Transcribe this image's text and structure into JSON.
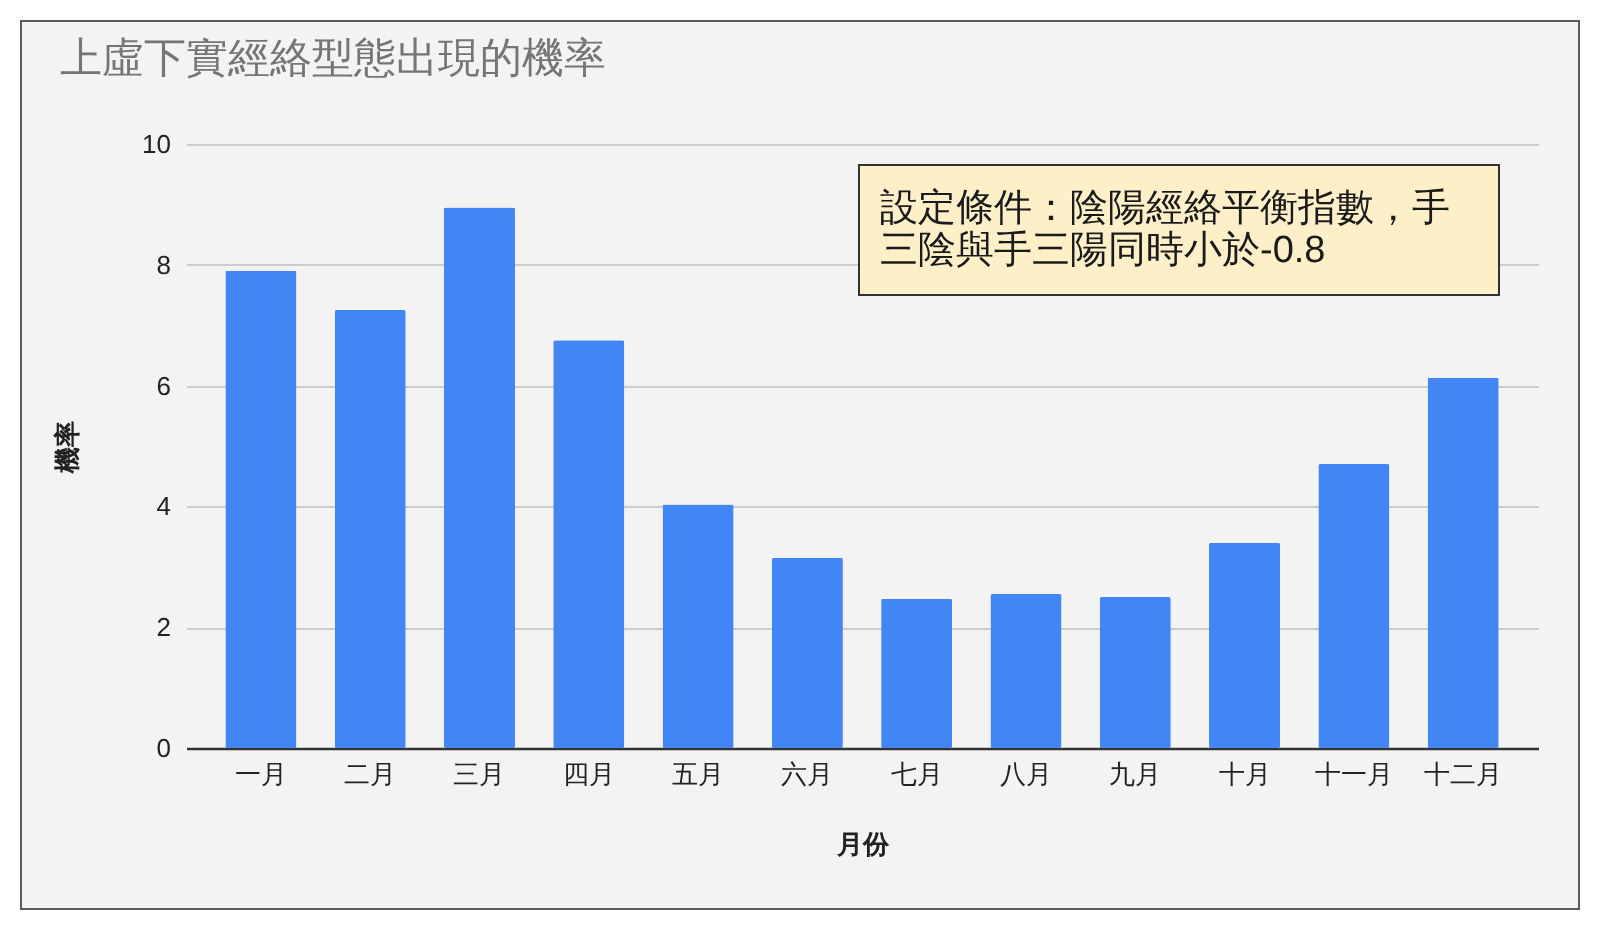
{
  "chart_data": {
    "type": "bar",
    "title": "上虛下實經絡型態出現的機率",
    "xlabel": "月份",
    "ylabel": "機率",
    "annotations": [
      "設定條件：陰陽經絡平衡指數，手三陰與手三陽同時小於-0.8"
    ],
    "categories": [
      "一月",
      "二月",
      "三月",
      "四月",
      "五月",
      "六月",
      "七月",
      "八月",
      "九月",
      "十月",
      "十一月",
      "十二月"
    ],
    "values": [
      7.9,
      7.25,
      8.95,
      6.75,
      4.03,
      3.15,
      2.47,
      2.55,
      2.5,
      3.4,
      4.7,
      6.13
    ],
    "color": "#4285f4",
    "ylim": [
      0,
      10
    ],
    "yticks": [
      0,
      2,
      4,
      6,
      8,
      10
    ],
    "grid": "y"
  }
}
